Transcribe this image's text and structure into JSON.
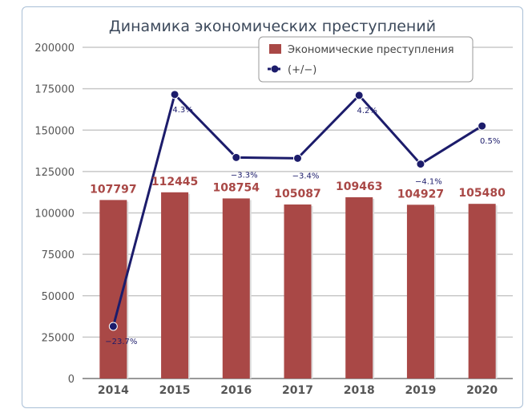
{
  "chart_data": {
    "type": "bar",
    "title": "Динамика экономических преступлений",
    "categories": [
      "2014",
      "2015",
      "2016",
      "2017",
      "2018",
      "2019",
      "2020"
    ],
    "series": [
      {
        "name": "Экономические преступления",
        "type": "bar",
        "color": "#a94846",
        "values": [
          107797,
          112445,
          108754,
          105087,
          109463,
          104927,
          105480
        ],
        "labels": [
          "107797",
          "112445",
          "108754",
          "105087",
          "109463",
          "104927",
          "105480"
        ]
      },
      {
        "name": "(+/−)",
        "type": "line",
        "color": "#1c1c6b",
        "axis": "secondary",
        "values": [
          -23.7,
          4.3,
          -3.3,
          -3.4,
          4.2,
          -4.1,
          0.5
        ],
        "labels": [
          "−23.7%",
          "4.3%",
          "−3.3%",
          "−3.4%",
          "4.2%",
          "−4.1%",
          "0.5%"
        ]
      }
    ],
    "ylim": [
      0,
      200000
    ],
    "y2lim": [
      -30,
      10
    ],
    "yticks": [
      "0",
      "25000",
      "50000",
      "75000",
      "100000",
      "125000",
      "150000",
      "175000",
      "200000"
    ],
    "grid": true,
    "legend": "top-right"
  }
}
